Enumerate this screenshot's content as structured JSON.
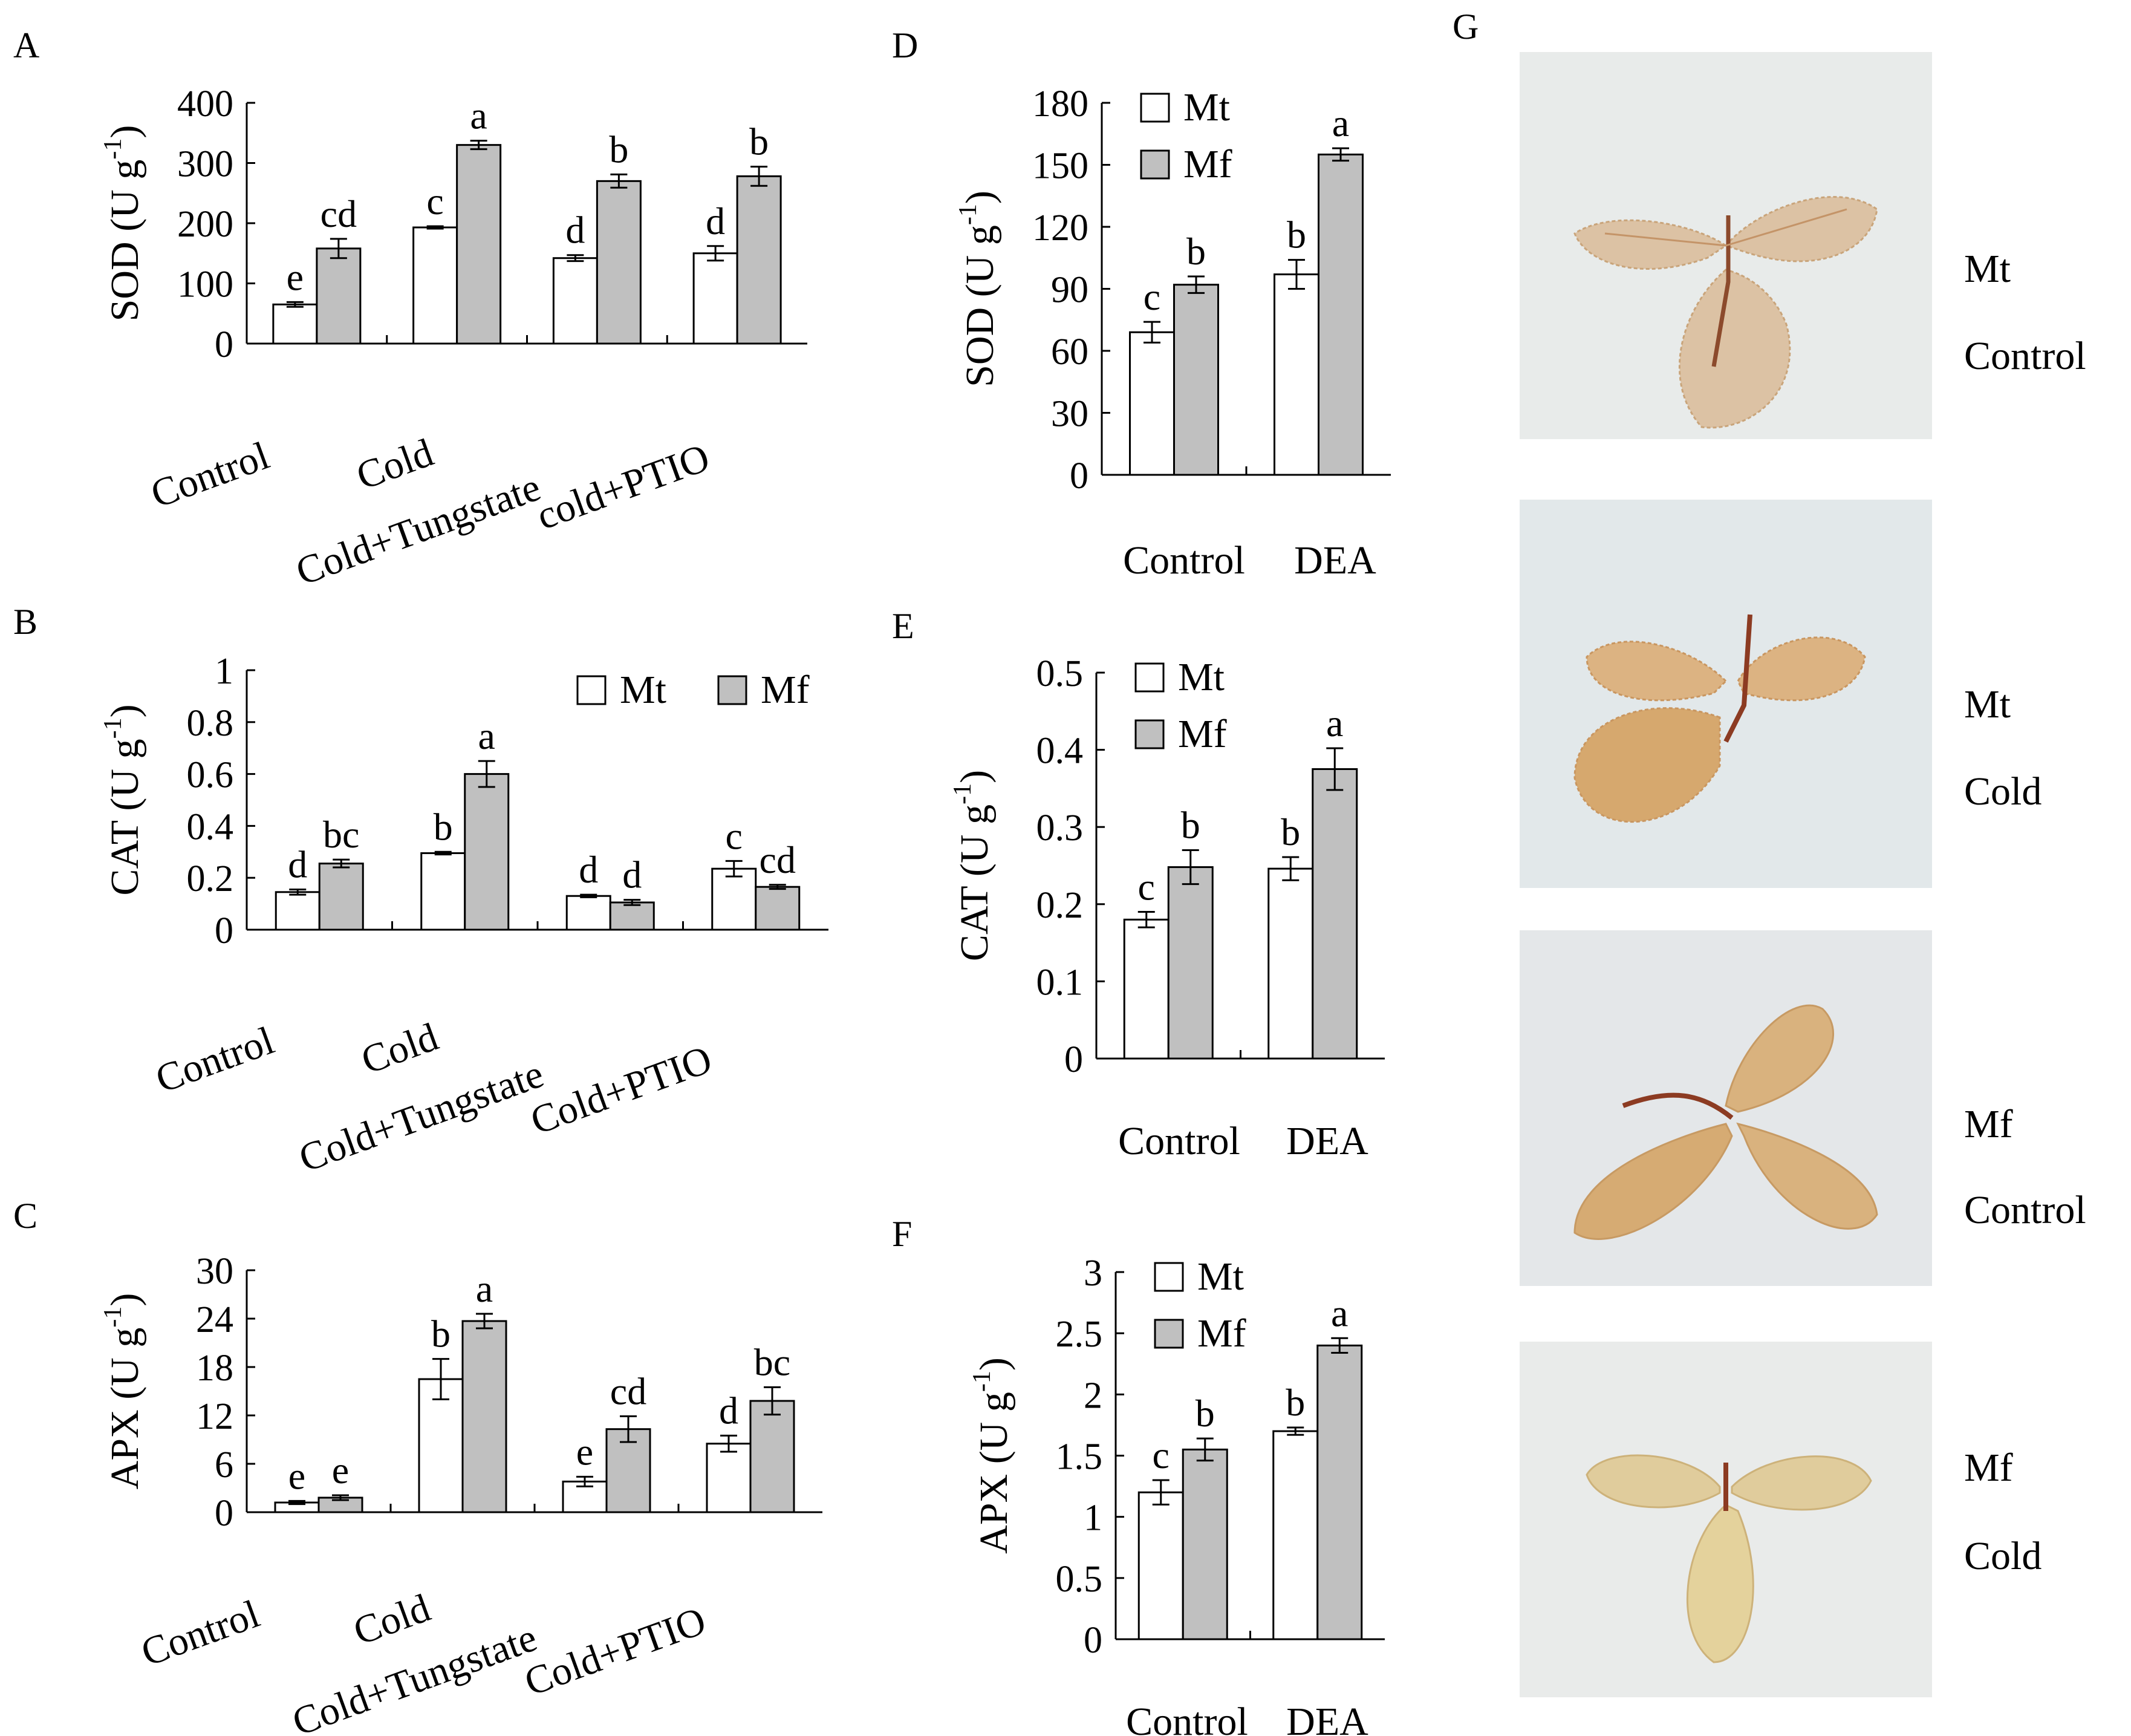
{
  "colors": {
    "Mt": "#ffffff",
    "Mf": "#c0c0c0",
    "axis": "#000000",
    "photo_bg": "#e6ebee",
    "leaf": "#d7b07e",
    "leaf_pale": "#dcc596",
    "stem": "#8c3b22"
  },
  "chart_data": [
    {
      "id": "A",
      "panel_label": "A",
      "type": "bar",
      "ylabel": "SOD (U g",
      "ylabel_sup": "-1",
      "ylabel_close": ")",
      "ylim": [
        0,
        400
      ],
      "yticks": [
        "0",
        "100",
        "200",
        "300",
        "400"
      ],
      "categories": [
        "Control",
        "Cold",
        "Cold+Tungstate",
        "cold+PTIO"
      ],
      "series": [
        {
          "name": "Mt",
          "values": [
            65,
            193,
            142,
            150
          ],
          "errors": [
            4,
            2,
            5,
            12
          ],
          "letters": [
            "e",
            "c",
            "d",
            "d"
          ]
        },
        {
          "name": "Mf",
          "values": [
            158,
            330,
            270,
            278
          ],
          "errors": [
            16,
            7,
            11,
            16
          ],
          "letters": [
            "cd",
            "a",
            "b",
            "b"
          ]
        }
      ],
      "legend": null
    },
    {
      "id": "B",
      "panel_label": "B",
      "type": "bar",
      "ylabel": "CAT (U g",
      "ylabel_sup": "-1",
      "ylabel_close": ")",
      "ylim": [
        0,
        1
      ],
      "yticks": [
        "0",
        "0.2",
        "0.4",
        "0.6",
        "0.8",
        "1"
      ],
      "categories": [
        "Control",
        "Cold",
        "Cold+Tungstate",
        "Cold+PTIO"
      ],
      "series": [
        {
          "name": "Mt",
          "values": [
            0.145,
            0.295,
            0.13,
            0.235
          ],
          "errors": [
            0.01,
            0.005,
            0.005,
            0.03
          ],
          "letters": [
            "d",
            "b",
            "d",
            "c"
          ]
        },
        {
          "name": "Mf",
          "values": [
            0.255,
            0.6,
            0.105,
            0.165
          ],
          "errors": [
            0.015,
            0.05,
            0.01,
            0.008
          ],
          "letters": [
            "bc",
            "a",
            "d",
            "cd"
          ]
        }
      ],
      "legend": {
        "placement": "top-right",
        "items": [
          "Mt",
          "Mf"
        ]
      }
    },
    {
      "id": "C",
      "panel_label": "C",
      "type": "bar",
      "ylabel": "APX (U g",
      "ylabel_sup": "-1",
      "ylabel_close": ")",
      "ylim": [
        0,
        30
      ],
      "yticks": [
        "0",
        "6",
        "12",
        "18",
        "24",
        "30"
      ],
      "categories": [
        "Control",
        "Cold",
        "Cold+Tungstate",
        "Cold+PTIO"
      ],
      "series": [
        {
          "name": "Mt",
          "values": [
            1.2,
            16.5,
            3.8,
            8.5
          ],
          "errors": [
            0.2,
            2.5,
            0.6,
            1.0
          ],
          "letters": [
            "e",
            "b",
            "e",
            "d"
          ]
        },
        {
          "name": "Mf",
          "values": [
            1.8,
            23.7,
            10.3,
            13.8
          ],
          "errors": [
            0.3,
            0.9,
            1.6,
            1.7
          ],
          "letters": [
            "e",
            "a",
            "cd",
            "bc"
          ]
        }
      ],
      "legend": null
    },
    {
      "id": "D",
      "panel_label": "D",
      "type": "bar",
      "ylabel": "SOD (U g",
      "ylabel_sup": "-1",
      "ylabel_close": ")",
      "ylim": [
        0,
        180
      ],
      "yticks": [
        "0",
        "30",
        "60",
        "90",
        "120",
        "150",
        "180"
      ],
      "categories": [
        "Control",
        "DEA"
      ],
      "series": [
        {
          "name": "Mt",
          "values": [
            69,
            97
          ],
          "errors": [
            5,
            7
          ],
          "letters": [
            "c",
            "b"
          ]
        },
        {
          "name": "Mf",
          "values": [
            92,
            155
          ],
          "errors": [
            4,
            3
          ],
          "letters": [
            "b",
            "a"
          ]
        }
      ],
      "legend": {
        "placement": "top-left",
        "items": [
          "Mt",
          "Mf"
        ]
      }
    },
    {
      "id": "E",
      "panel_label": "E",
      "type": "bar",
      "ylabel": "CAT (U g",
      "ylabel_sup": "-1",
      "ylabel_close": ")",
      "ylim": [
        0,
        0.5
      ],
      "yticks": [
        "0",
        "0.1",
        "0.2",
        "0.3",
        "0.4",
        "0.5"
      ],
      "categories": [
        "Control",
        "DEA"
      ],
      "series": [
        {
          "name": "Mt",
          "values": [
            0.18,
            0.246
          ],
          "errors": [
            0.01,
            0.015
          ],
          "letters": [
            "c",
            "b"
          ]
        },
        {
          "name": "Mf",
          "values": [
            0.248,
            0.375
          ],
          "errors": [
            0.022,
            0.027
          ],
          "letters": [
            "b",
            "a"
          ]
        }
      ],
      "legend": {
        "placement": "top-left",
        "items": [
          "Mt",
          "Mf"
        ]
      }
    },
    {
      "id": "F",
      "panel_label": "F",
      "type": "bar",
      "ylabel": "APX (U g",
      "ylabel_sup": "-1",
      "ylabel_close": ")",
      "ylim": [
        0,
        3
      ],
      "yticks": [
        "0",
        "0.5",
        "1",
        "1.5",
        "2",
        "2.5",
        "3"
      ],
      "categories": [
        "Control",
        "DEA"
      ],
      "series": [
        {
          "name": "Mt",
          "values": [
            1.2,
            1.7
          ],
          "errors": [
            0.1,
            0.03
          ],
          "letters": [
            "c",
            "b"
          ]
        },
        {
          "name": "Mf",
          "values": [
            1.55,
            2.4
          ],
          "errors": [
            0.09,
            0.06
          ],
          "letters": [
            "b",
            "a"
          ]
        }
      ],
      "legend": {
        "placement": "top-left",
        "items": [
          "Mt",
          "Mf"
        ]
      }
    }
  ],
  "photos": {
    "panel_label": "G",
    "items": [
      {
        "line1": "Mt",
        "line2": "Control",
        "leaf_shape": "serrated"
      },
      {
        "line1": "Mt",
        "line2": "Cold",
        "leaf_shape": "serrated"
      },
      {
        "line1": "Mf",
        "line2": "Control",
        "leaf_shape": "smooth"
      },
      {
        "line1": "Mf",
        "line2": "Cold",
        "leaf_shape": "smooth"
      }
    ]
  }
}
